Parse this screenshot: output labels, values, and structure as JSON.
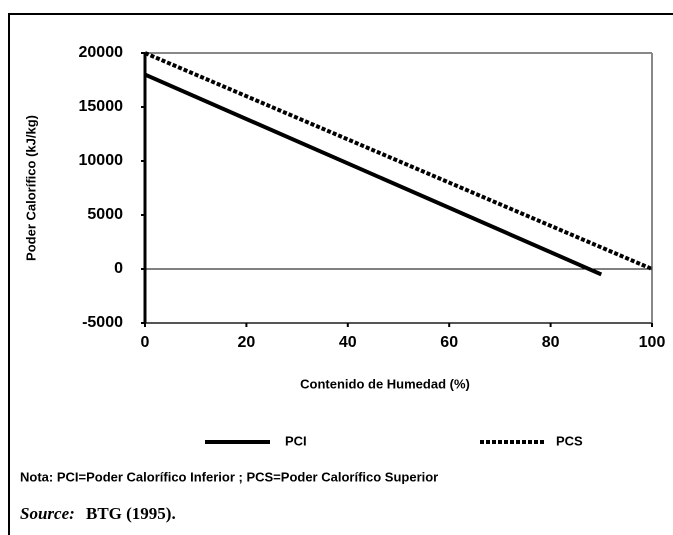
{
  "chart_data": {
    "type": "line",
    "xlabel": "Contenido de Humedad  (%)",
    "ylabel": "Poder Calorífico (kJ/kg)",
    "series": [
      {
        "name": "PCI",
        "color": "#000000",
        "line_style": "solid",
        "x": [
          0,
          90
        ],
        "values": [
          18000,
          -500
        ]
      },
      {
        "name": "PCS",
        "color": "#000000",
        "line_style": "dashed",
        "x": [
          0,
          100
        ],
        "values": [
          20000,
          0
        ]
      }
    ],
    "xlim": [
      0,
      100
    ],
    "xticks": [
      0,
      20,
      40,
      60,
      80,
      100
    ],
    "ylim": [
      -5000,
      20000
    ],
    "yticks": [
      -5000,
      0,
      5000,
      10000,
      15000,
      20000
    ],
    "legend": "bottom",
    "note": "Nota:  PCI=Poder Calorífico Inferior ;   PCS=Poder Calorífico Superior",
    "source_label": "Source:",
    "source": "BTG (1995)."
  }
}
